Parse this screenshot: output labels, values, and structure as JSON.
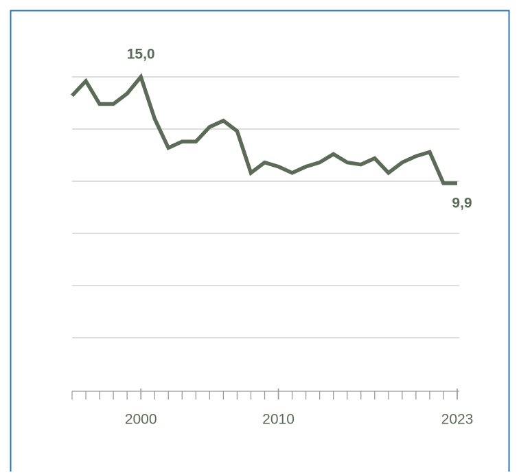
{
  "chart_data": {
    "type": "line",
    "x": [
      1995,
      1996,
      1997,
      1998,
      1999,
      2000,
      2001,
      2002,
      2003,
      2004,
      2005,
      2006,
      2007,
      2008,
      2009,
      2010,
      2011,
      2012,
      2013,
      2014,
      2015,
      2016,
      2017,
      2018,
      2019,
      2020,
      2021,
      2022,
      2023
    ],
    "series": [
      {
        "color": "#5b6b57",
        "values": [
          14.1,
          14.8,
          13.7,
          13.7,
          14.2,
          15.0,
          13.0,
          11.6,
          11.9,
          11.9,
          12.6,
          12.9,
          12.4,
          10.4,
          10.9,
          10.7,
          10.4,
          10.7,
          10.9,
          11.3,
          10.9,
          10.8,
          11.1,
          10.4,
          10.9,
          11.2,
          11.4,
          9.9,
          9.9
        ],
        "value_labels": [
          null,
          null,
          null,
          null,
          null,
          "15,0",
          null,
          null,
          null,
          null,
          null,
          null,
          null,
          null,
          null,
          null,
          null,
          null,
          null,
          null,
          null,
          null,
          null,
          null,
          null,
          null,
          null,
          null,
          "9,9"
        ]
      }
    ],
    "xlim": [
      1995,
      2023
    ],
    "xticks": [
      2000,
      2010,
      2023
    ],
    "ylim": [
      0,
      15
    ],
    "yticks": [
      2.5,
      5,
      7.5,
      10,
      12.5,
      15
    ],
    "grid": true
  }
}
